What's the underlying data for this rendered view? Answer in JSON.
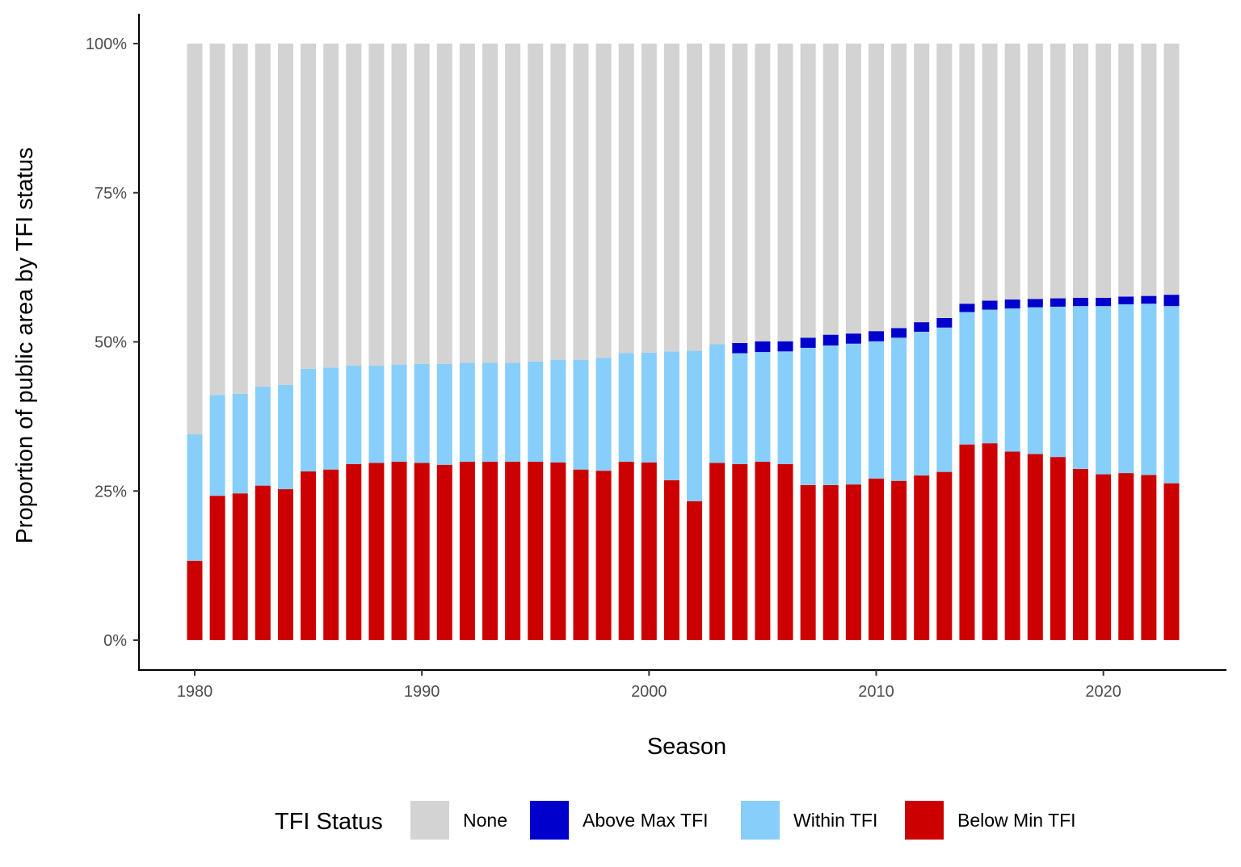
{
  "chart_data": {
    "type": "bar",
    "stacked": true,
    "title": "",
    "xlabel": "Season",
    "ylabel": "Proportion of public area by TFI status",
    "ylim": [
      0,
      100
    ],
    "y_ticks": [
      "0%",
      "25%",
      "50%",
      "75%",
      "100%"
    ],
    "y_tick_values": [
      0,
      25,
      50,
      75,
      100
    ],
    "x_ticks": [
      "1980",
      "1990",
      "2000",
      "2010",
      "2020"
    ],
    "x_tick_values": [
      1980,
      1990,
      2000,
      2010,
      2020
    ],
    "grid": false,
    "legend_title": "TFI Status",
    "legend_position": "bottom",
    "x": [
      1980,
      1981,
      1982,
      1983,
      1984,
      1985,
      1986,
      1987,
      1988,
      1989,
      1990,
      1991,
      1992,
      1993,
      1994,
      1995,
      1996,
      1997,
      1998,
      1999,
      2000,
      2001,
      2002,
      2003,
      2004,
      2005,
      2006,
      2007,
      2008,
      2009,
      2010,
      2011,
      2012,
      2013,
      2014,
      2015,
      2016,
      2017,
      2018,
      2019,
      2020,
      2021,
      2022,
      2023
    ],
    "series": [
      {
        "name": "Below Min TFI",
        "color": "#cd0000",
        "values": [
          13.3,
          24.2,
          24.6,
          25.9,
          25.3,
          28.3,
          28.6,
          29.5,
          29.7,
          29.9,
          29.7,
          29.4,
          29.9,
          29.9,
          29.9,
          29.9,
          29.8,
          28.6,
          28.4,
          29.9,
          29.8,
          26.8,
          23.3,
          29.7,
          29.5,
          29.9,
          29.5,
          26.0,
          26.0,
          26.1,
          27.1,
          26.7,
          27.6,
          28.2,
          32.8,
          33.0,
          31.6,
          31.2,
          30.7,
          28.7,
          27.8,
          28.0,
          27.7,
          26.3
        ]
      },
      {
        "name": "Within TFI",
        "color": "#87cefa",
        "values": [
          21.2,
          16.9,
          16.7,
          16.6,
          17.5,
          17.2,
          17.1,
          16.5,
          16.3,
          16.3,
          16.6,
          16.9,
          16.6,
          16.6,
          16.6,
          16.8,
          17.2,
          18.4,
          18.9,
          18.2,
          18.4,
          21.6,
          25.2,
          19.9,
          18.6,
          18.4,
          18.9,
          23.0,
          23.4,
          23.6,
          23.0,
          24.0,
          24.1,
          24.2,
          22.2,
          22.4,
          24.0,
          24.6,
          25.2,
          27.3,
          28.2,
          28.3,
          28.7,
          29.7
        ]
      },
      {
        "name": "Above Max TFI",
        "color": "#0000cd",
        "values": [
          0,
          0,
          0,
          0,
          0,
          0,
          0,
          0,
          0,
          0,
          0,
          0,
          0,
          0,
          0,
          0,
          0,
          0,
          0,
          0,
          0,
          0,
          0,
          0,
          1.7,
          1.8,
          1.7,
          1.7,
          1.8,
          1.7,
          1.7,
          1.6,
          1.6,
          1.6,
          1.4,
          1.5,
          1.5,
          1.4,
          1.4,
          1.4,
          1.4,
          1.3,
          1.3,
          1.9
        ]
      },
      {
        "name": "None",
        "color": "#d3d3d3",
        "values": [
          65.5,
          58.9,
          58.7,
          57.5,
          57.2,
          54.5,
          54.3,
          54.0,
          54.0,
          53.8,
          53.7,
          53.7,
          53.5,
          53.5,
          53.5,
          53.3,
          53.0,
          53.0,
          52.7,
          51.9,
          51.8,
          51.6,
          51.5,
          50.4,
          50.2,
          49.9,
          49.9,
          49.3,
          48.8,
          48.6,
          48.2,
          47.7,
          46.7,
          46.0,
          43.6,
          43.1,
          42.9,
          42.8,
          42.7,
          42.6,
          42.6,
          42.4,
          42.3,
          42.1
        ]
      }
    ],
    "legend_order": [
      "None",
      "Above Max TFI",
      "Within TFI",
      "Below Min TFI"
    ]
  }
}
